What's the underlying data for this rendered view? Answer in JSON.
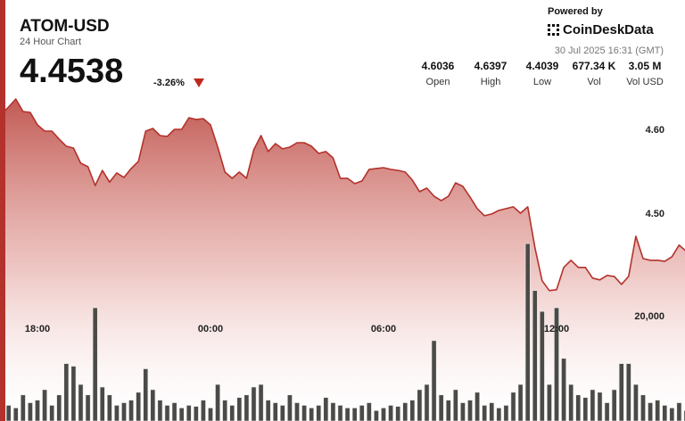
{
  "header": {
    "title": "ATOM-USD",
    "subtitle": "24 Hour Chart",
    "price": "4.4538",
    "change": "-3.26%",
    "powered_by": "Powered by",
    "brand": "CoinDeskData",
    "timestamp": "30 Jul 2025 16:31 (GMT)",
    "stats": [
      {
        "value": "4.6036",
        "label": "Open"
      },
      {
        "value": "4.6397",
        "label": "High"
      },
      {
        "value": "4.4039",
        "label": "Low"
      },
      {
        "value": "677.34 K",
        "label": "Vol"
      },
      {
        "value": "3.05 M",
        "label": "Vol USD"
      }
    ]
  },
  "chart_data": {
    "type": "line",
    "categories": [
      null,
      null,
      null,
      null,
      null,
      "18:00",
      null,
      null,
      null,
      null,
      null,
      null,
      null,
      null,
      null,
      null,
      null,
      null,
      null,
      null,
      null,
      null,
      null,
      null,
      null,
      null,
      null,
      null,
      null,
      "00:00",
      null,
      null,
      null,
      null,
      null,
      null,
      null,
      null,
      null,
      null,
      null,
      null,
      null,
      null,
      null,
      null,
      null,
      null,
      null,
      null,
      null,
      null,
      null,
      "06:00",
      null,
      null,
      null,
      null,
      null,
      null,
      null,
      null,
      null,
      null,
      null,
      null,
      null,
      null,
      null,
      null,
      null,
      null,
      null,
      null,
      null,
      null,
      null,
      "12:00",
      null,
      null,
      null,
      null,
      null,
      null,
      null,
      null,
      null,
      null,
      null,
      null,
      null,
      null,
      null,
      null,
      null,
      null
    ],
    "series": [
      {
        "color": "#b3322b",
        "values": [
          4.6191,
          4.6277,
          4.6372,
          4.6223,
          4.6213,
          4.6064,
          4.5989,
          4.5989,
          4.5894,
          4.5809,
          4.5787,
          4.5606,
          4.5564,
          4.534,
          4.552,
          4.538,
          4.549,
          4.5436,
          4.5543,
          4.5628,
          4.5989,
          4.6021,
          4.5936,
          4.5926,
          4.601,
          4.601,
          4.6149,
          4.6128,
          4.6138,
          4.6064,
          4.5798,
          4.55,
          4.5426,
          4.55,
          4.5426,
          4.5766,
          4.5936,
          4.5745,
          4.584,
          4.5777,
          4.5798,
          4.5851,
          4.5851,
          4.5809,
          4.5723,
          4.5745,
          4.567,
          4.5426,
          4.5426,
          4.5362,
          4.5394,
          4.5532,
          4.5543,
          4.5553,
          4.5532,
          4.5521,
          4.55,
          4.5404,
          4.5266,
          4.5309,
          4.5213,
          4.516,
          4.5213,
          4.5372,
          4.533,
          4.5202,
          4.5064,
          4.4979,
          4.5,
          4.5043,
          4.5064,
          4.5085,
          4.501,
          4.5085,
          4.4596,
          4.4202,
          4.4085,
          4.4096,
          4.4362,
          4.4447,
          4.4362,
          4.4362,
          4.4234,
          4.4213,
          4.4266,
          4.4255,
          4.416,
          4.4255,
          4.4734,
          4.4468,
          4.4447,
          4.4447,
          4.4436,
          4.4489,
          4.4628,
          4.4553
        ]
      },
      {
        "type": "bar",
        "axis": "y2",
        "color": "#4a4a47",
        "values": [
          4000,
          3000,
          2500,
          5000,
          3500,
          4000,
          6000,
          3000,
          5000,
          11000,
          10500,
          7000,
          5000,
          21700,
          6500,
          5000,
          3000,
          3500,
          4000,
          5500,
          10000,
          6000,
          4000,
          3000,
          3500,
          2500,
          3000,
          2800,
          4000,
          2500,
          7000,
          4000,
          3000,
          4500,
          5000,
          6500,
          7000,
          4000,
          3500,
          3000,
          5000,
          3500,
          3000,
          2500,
          3000,
          4500,
          3500,
          3000,
          2500,
          2500,
          3000,
          3500,
          2000,
          2500,
          3000,
          2800,
          3500,
          4000,
          6000,
          7000,
          15400,
          5000,
          4000,
          6000,
          3500,
          4000,
          5500,
          3000,
          3500,
          2500,
          3000,
          5500,
          7000,
          34000,
          25000,
          21000,
          7000,
          21700,
          12000,
          7000,
          5000,
          4500,
          6000,
          5500,
          3500,
          6000,
          11000,
          11000,
          7000,
          5000,
          3500,
          4000,
          3000,
          2500,
          3500,
          2000
        ]
      }
    ],
    "ylim": [
      4.37,
      4.65
    ],
    "yticks": [
      {
        "value": 4.6,
        "label": "4.60"
      },
      {
        "value": 4.5,
        "label": "4.50"
      }
    ],
    "y2lim": [
      0,
      80000
    ],
    "y2ticks": [
      {
        "value": 20000,
        "label": "20,000"
      }
    ]
  }
}
